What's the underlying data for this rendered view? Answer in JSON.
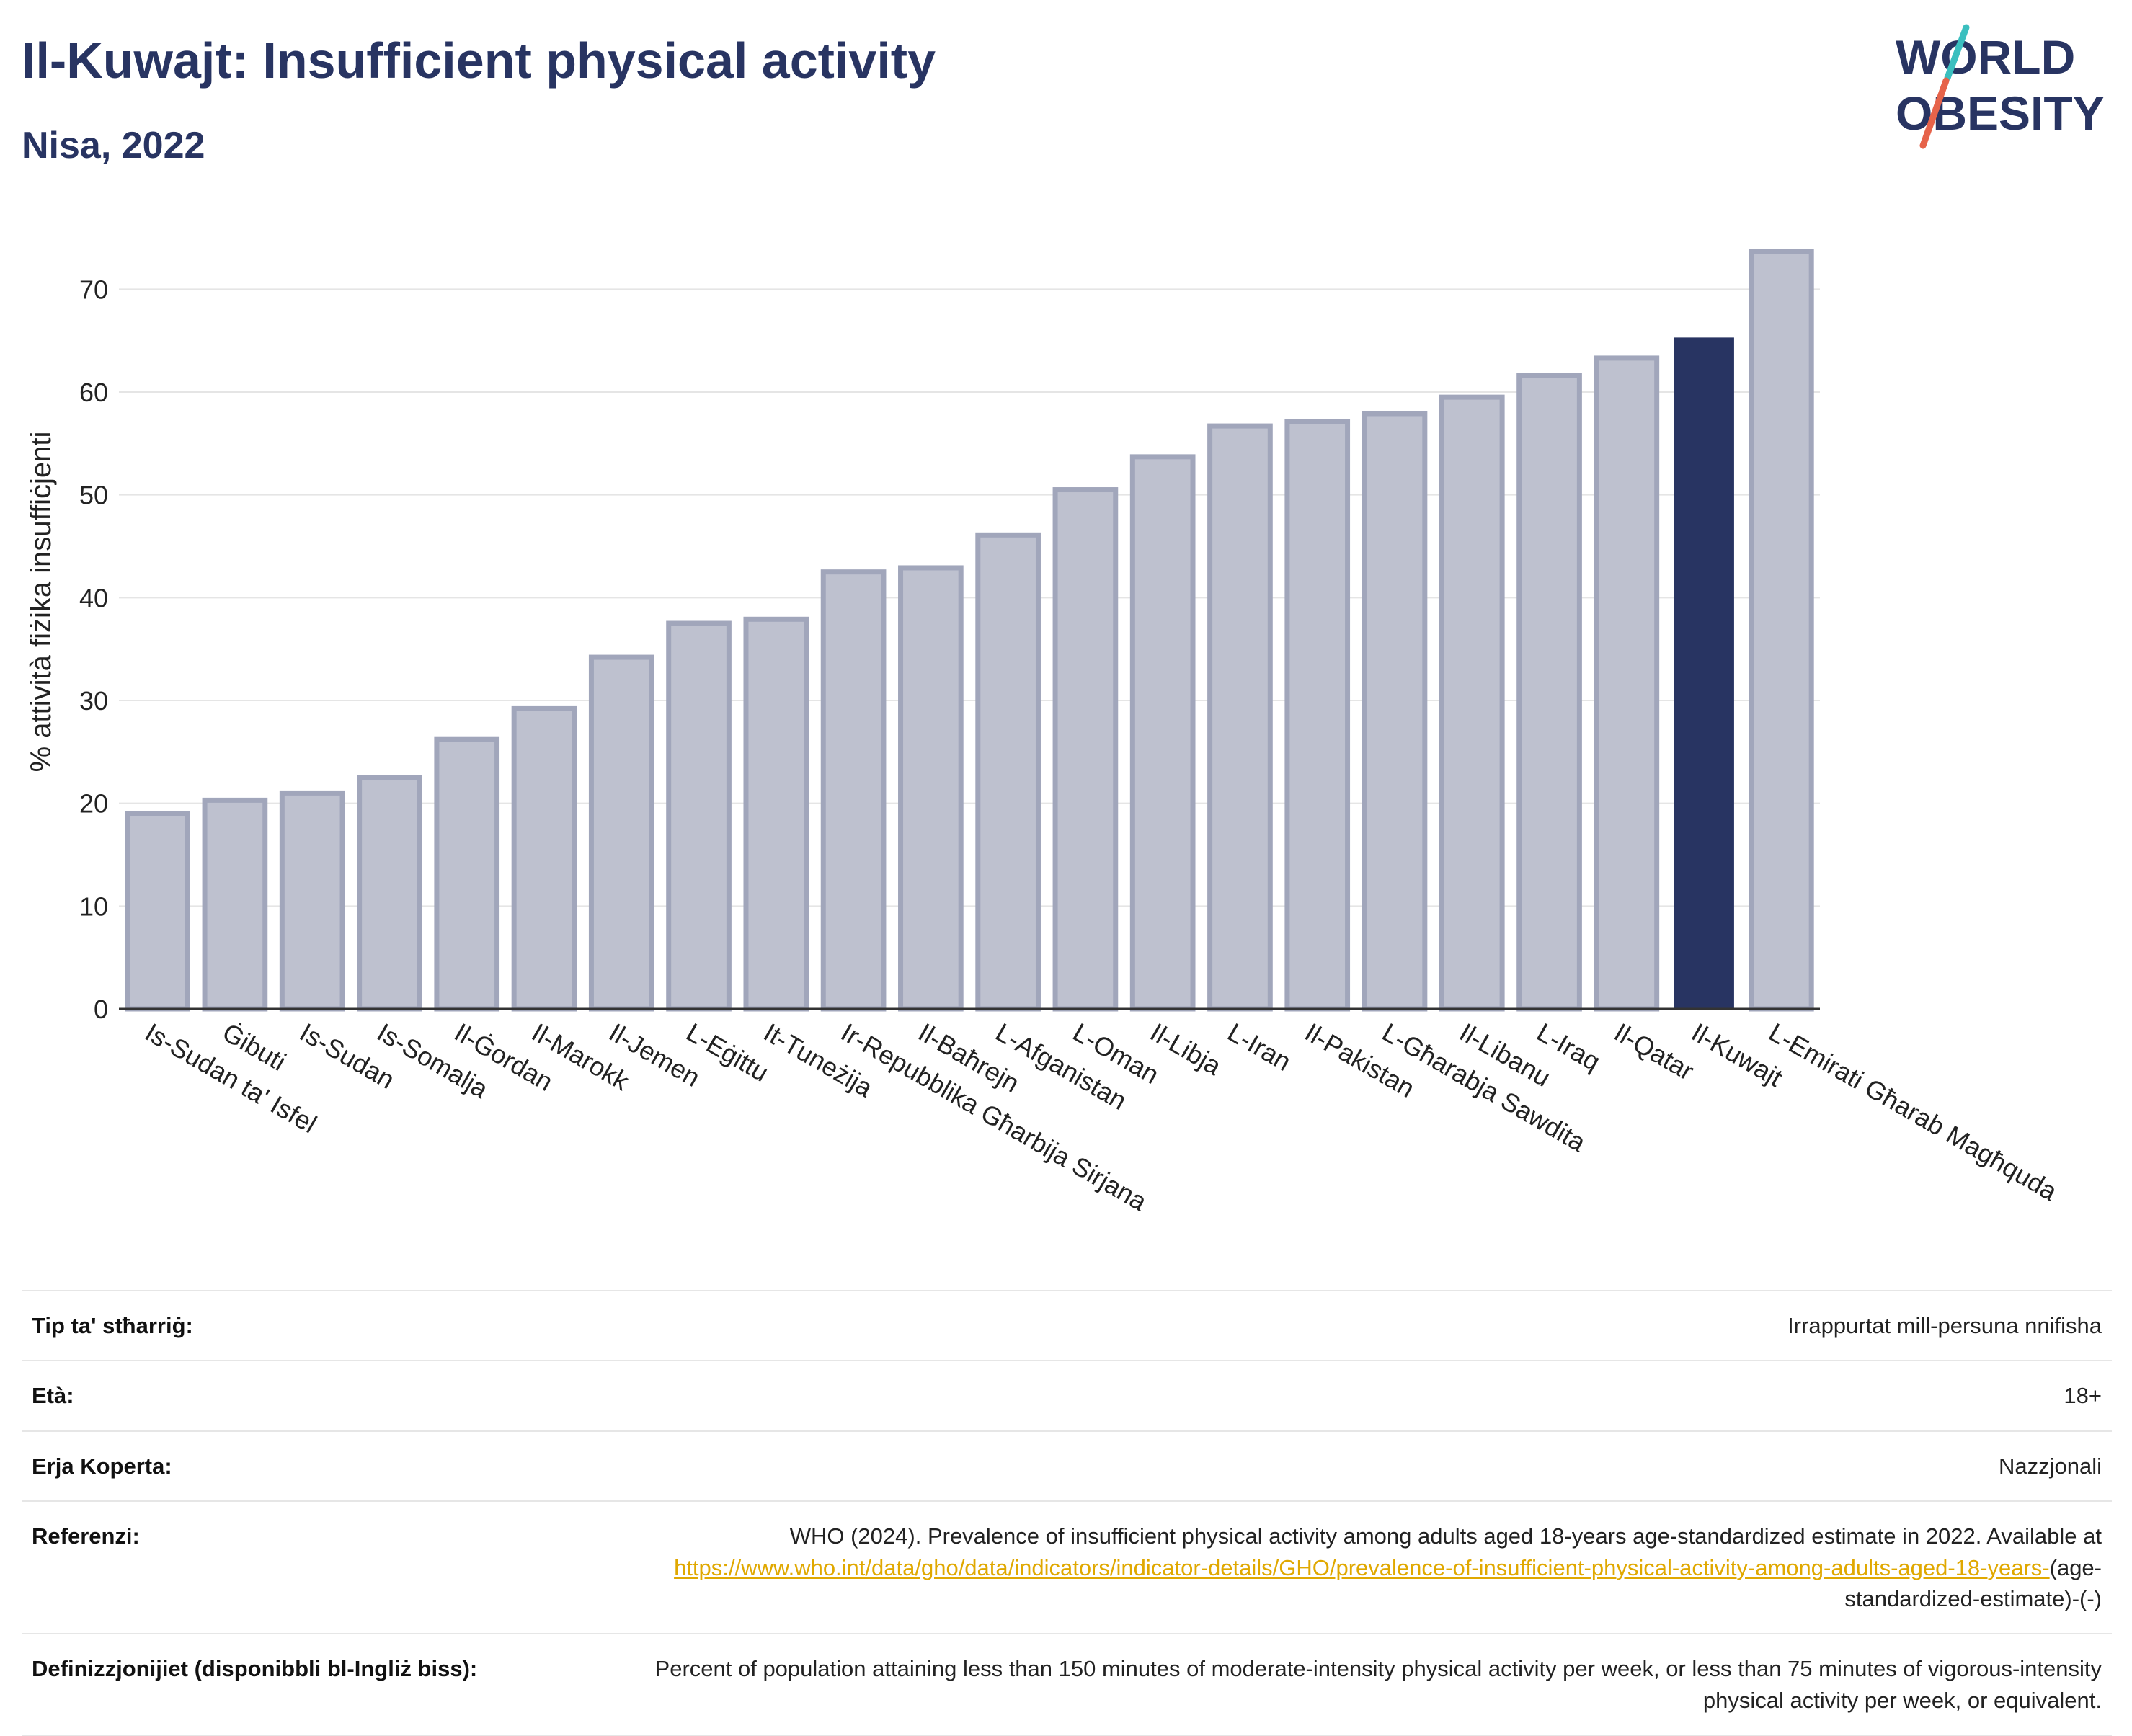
{
  "header": {
    "title": "Il-Kuwajt: Insufficient physical activity",
    "subtitle": "Nisa, 2022"
  },
  "logo": {
    "line1": "WORLD",
    "line2": "OBESITY"
  },
  "colors": {
    "highlight": "#283462",
    "bar_fill": "#bec1cf",
    "bar_stroke": "#a1a6bb",
    "accent_link": "#e0a800",
    "logo_teal": "#3bbfbf",
    "logo_red": "#e6634a"
  },
  "chart_data": {
    "type": "bar",
    "ylabel": "% attività fiżika insuffiċjenti",
    "xlabel": "",
    "ylim": [
      0,
      75
    ],
    "yticks": [
      0,
      10,
      20,
      30,
      40,
      50,
      60,
      70
    ],
    "grid": true,
    "highlight_category": "Il-Kuwajt",
    "categories": [
      "Is-Sudan ta' Isfel",
      "Ġibuti",
      "Is-Sudan",
      "Is-Somalja",
      "Il-Ġordan",
      "Il-Marokk",
      "Il-Jemen",
      "L-Eġittu",
      "It-Tuneżija",
      "Ir-Repubblika Għarbija Sirjana",
      "Il-Baħrejn",
      "L-Afganistan",
      "L-Oman",
      "Il-Libja",
      "L-Iran",
      "Il-Pakistan",
      "L-Għarabja Sawdita",
      "Il-Libanu",
      "L-Iraq",
      "Il-Qatar",
      "Il-Kuwajt",
      "L-Emirati Għarab Magħquda"
    ],
    "values": [
      19.0,
      20.3,
      21.0,
      22.5,
      26.2,
      29.2,
      34.2,
      37.5,
      37.9,
      42.5,
      42.9,
      46.1,
      50.5,
      53.7,
      56.7,
      57.1,
      57.9,
      59.5,
      61.6,
      63.3,
      65.3,
      73.7
    ]
  },
  "info": {
    "rows": [
      {
        "label": "Tip ta' stħarriġ:",
        "value": "Irrappurtat mill-persuna nnifisha"
      },
      {
        "label": "Età:",
        "value": "18+"
      },
      {
        "label": "Erja Koperta:",
        "value": "Nazzjonali"
      }
    ],
    "reference": {
      "label": "Referenzi:",
      "text": "WHO (2024). Prevalence of insufficient physical activity among adults aged 18-years age-standardized estimate in 2022. Available at",
      "link": "https://www.who.int/data/gho/data/indicators/indicator-details/GHO/prevalence-of-insufficient-physical-activity-among-adults-aged-18-years-",
      "tail": "(age-standardized-estimate)-(-)"
    },
    "definition": {
      "label": "Definizzjonijiet (disponibbli bl-Ingliż biss):",
      "text": "Percent of population attaining less than 150 minutes of moderate-intensity physical activity per week, or less than 75 minutes of vigorous-intensity physical activity per week, or equivalent."
    }
  }
}
